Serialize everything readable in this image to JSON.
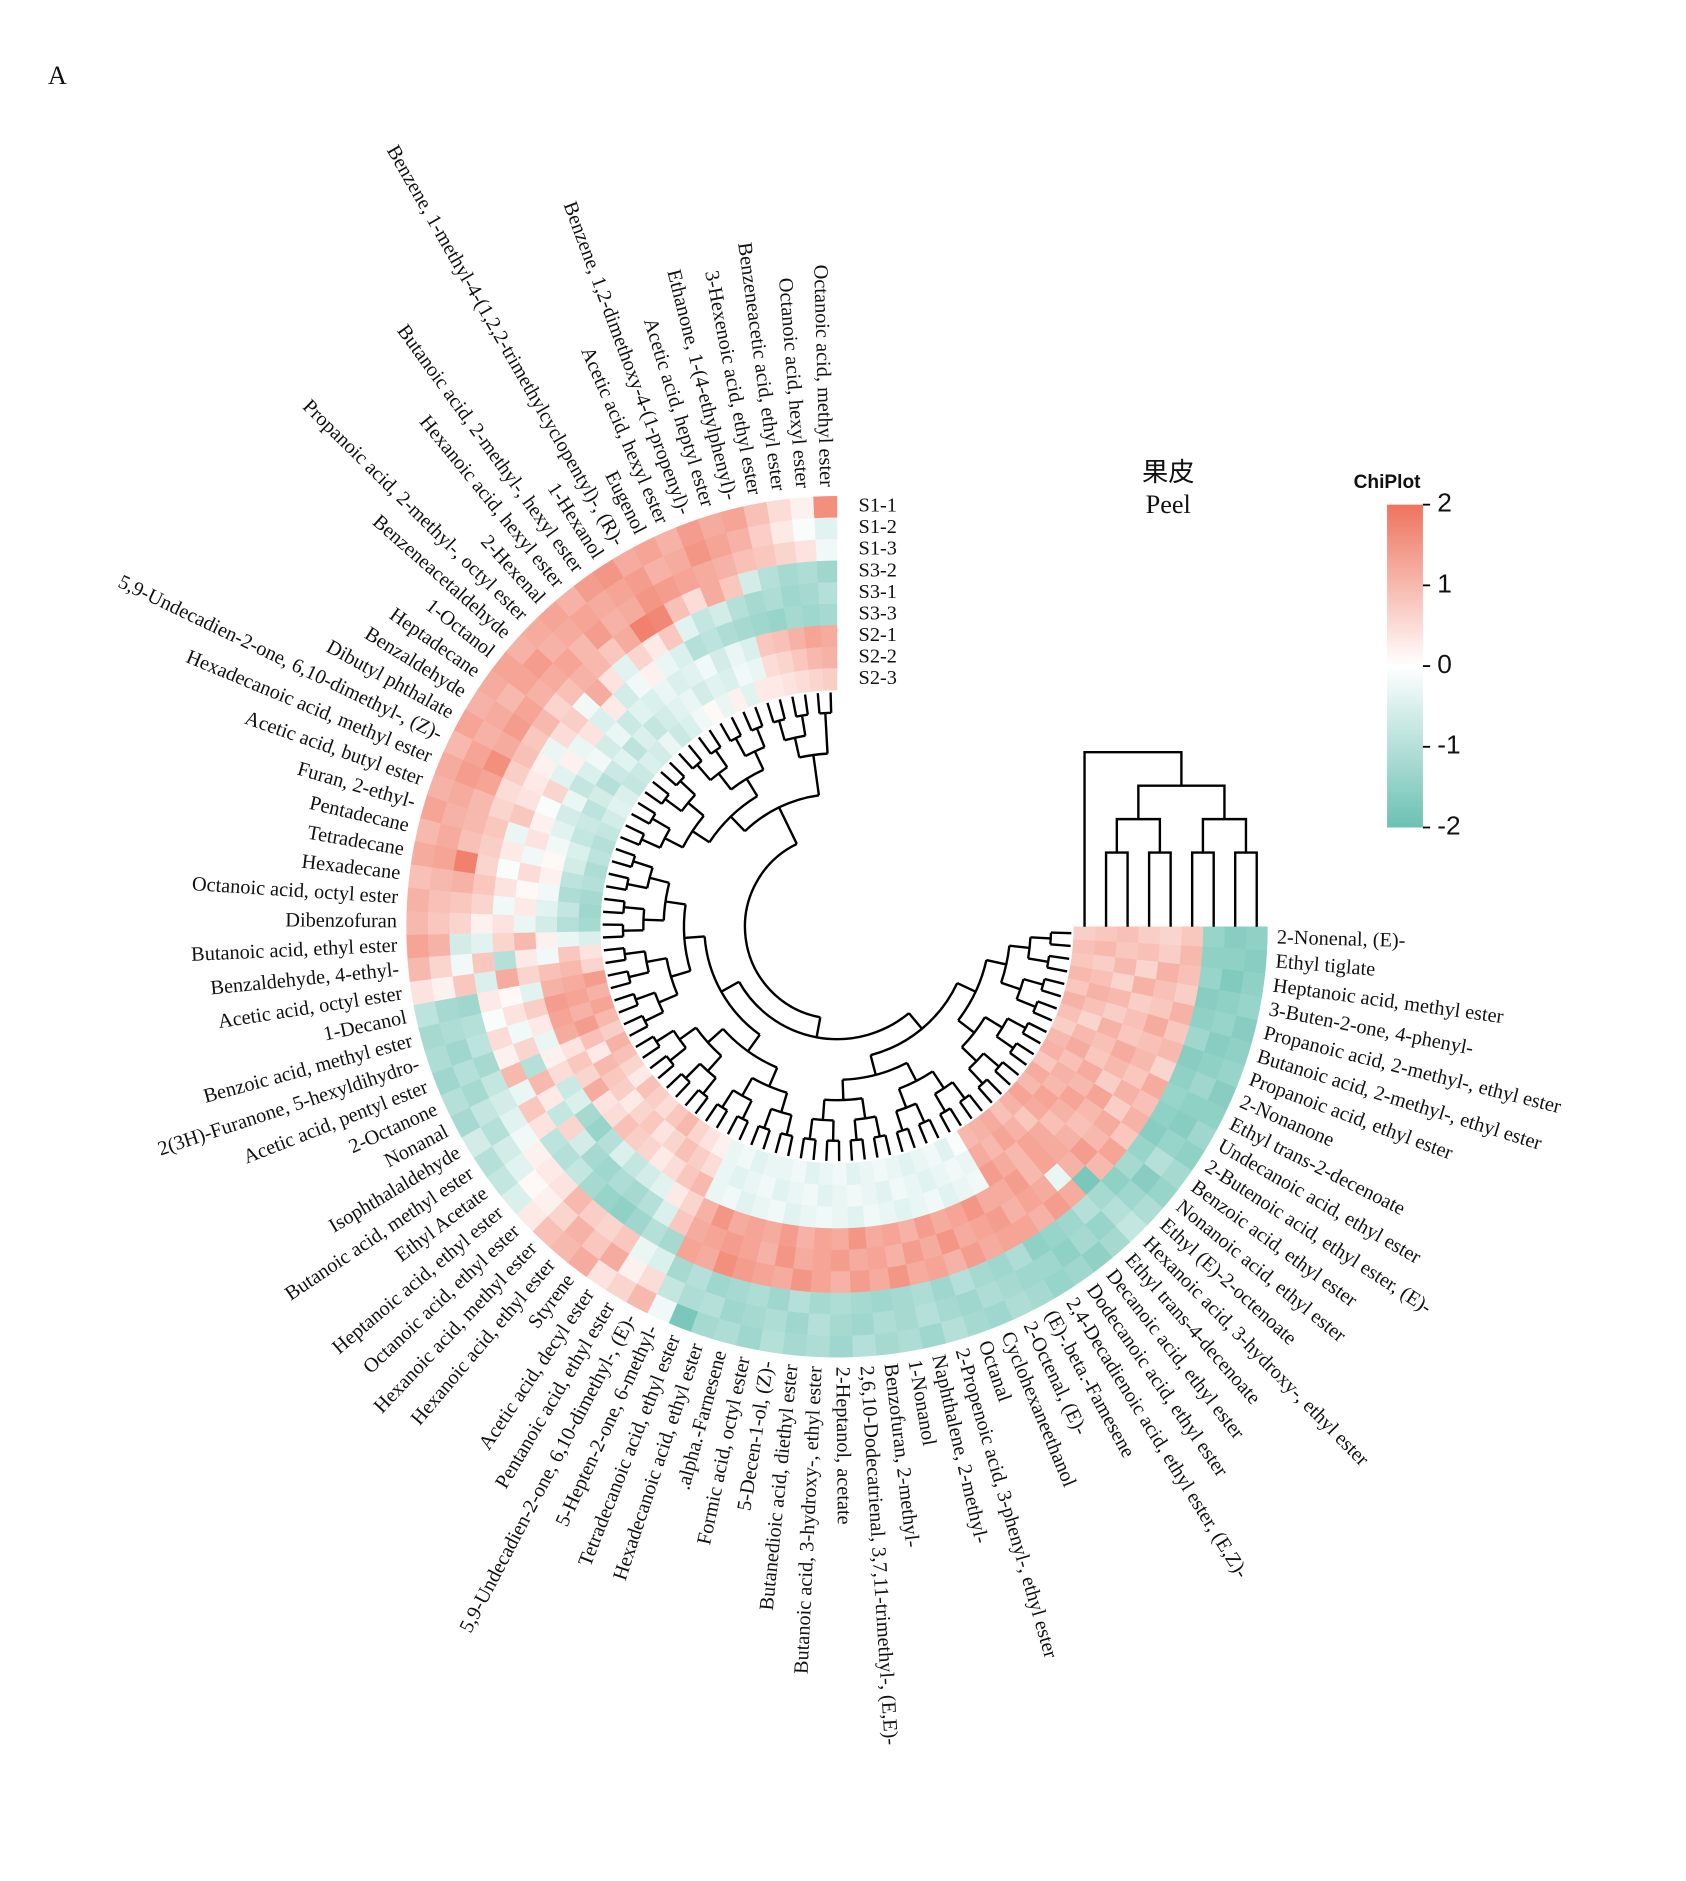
{
  "chart_data": {
    "type": "heatmap",
    "panel_label": "A",
    "title": "果皮",
    "subtitle": "Peel",
    "samples": [
      "S1-1",
      "S1-2",
      "S1-3",
      "S3-2",
      "S3-1",
      "S3-3",
      "S2-1",
      "S2-2",
      "S2-3"
    ],
    "compounds": [
      "2-Nonenal, (E)-",
      "Ethyl tiglate",
      "Heptanoic acid, methyl ester",
      "3-Buten-2-one, 4-phenyl-",
      "Propanoic acid, 2-methyl-, ethyl ester",
      "Butanoic acid, 2-methyl-, ethyl ester",
      "Propanoic acid, ethyl ester",
      "2-Nonanone",
      "Ethyl trans-2-decenoate",
      "Undecanoic acid, ethyl ester",
      "2-Butenoic acid, ethyl ester, (E)-",
      "Benzoic acid, ethyl ester",
      "Nonanoic acid, ethyl ester",
      "Ethyl (E)-2-octenoate",
      "Hexanoic acid, 3-hydroxy-, ethyl ester",
      "Ethyl trans-4-decenoate",
      "Decanoic acid, ethyl ester",
      "Dodecanoic acid, ethyl ester",
      "2,4-Decadienoic acid, ethyl ester, (E,Z)-",
      "(E)-.beta.-Famesene",
      "2-Octenal, (E)-",
      "Cyclohexaneethanol",
      "Octanal",
      "2-Propenoic acid, 3-phenyl-, ethyl ester",
      "Naphthalene, 2-methyl-",
      "1-Nonanol",
      "Benzofuran, 2-methyl-",
      "2,6,10-Dodecatrienal, 3,7,11-trimethyl-, (E,E)-",
      "2-Heptanol, acetate",
      "Butanoic acid, 3-hydroxy-, ethyl ester",
      "Butanedioic acid, diethyl ester",
      "5-Decen-1-ol, (Z)-",
      "Formic acid, octyl ester",
      ".alpha.-Farnesene",
      "Hexadecanoic acid, ethyl ester",
      "Tetradecanoic acid, ethyl ester",
      "5-Hepten-2-one, 6-methyl-",
      "5,9-Undecadien-2-one, 6,10-dimethyl-, (E)-",
      "Pentanoic acid, ethyl ester",
      "Acetic acid, decyl ester",
      "Styrene",
      "Hexanoic acid, ethyl ester",
      "Hexanoic acid, methyl ester",
      "Octanoic acid, ethyl ester",
      "Heptanoic acid, ethyl ester",
      "Ethyl Acetate",
      "Butanoic acid, methyl ester",
      "Isophthalaldehyde",
      "Nonanal",
      "2-Octanone",
      "Acetic acid, pentyl ester",
      "2(3H)-Furanone, 5-hexyldihydro-",
      "Benzoic acid, methyl ester",
      "1-Decanol",
      "Acetic acid, octyl ester",
      "Benzaldehyde, 4-ethyl-",
      "Butanoic acid, ethyl ester",
      "Dibenzofuran",
      "Octanoic acid, octyl ester",
      "Hexadecane",
      "Tetradecane",
      "Pentadecane",
      "Furan, 2-ethyl-",
      "Acetic acid, butyl ester",
      "Hexadecanoic acid, methyl ester",
      "5,9-Undecadien-2-one, 6,10-dimethyl-, (Z)-",
      "Dibutyl phthalate",
      "Benzaldehyde",
      "Heptadecane",
      "1-Octanol",
      "Benzeneacetaldehyde",
      "Propanoic acid, 2-methyl-, octyl ester",
      "2-Hexenal",
      "Hexanoic acid, hexyl ester",
      "Butanoic acid, 2-methyl-, hexyl ester",
      "1-Hexanol",
      "Benzene, 1-methyl-4-(1,2,2-trimethylcyclopentyl)-, (R)-",
      "Eugenol",
      "Acetic acid, hexyl ester",
      "Benzene, 1,2-dimethoxy-4-(1-propenyl)-",
      "Acetic acid, heptyl ester",
      "Ethanone, 1-(4-ethylphenyl)-",
      "3-Hexenoic acid, ethyl ester",
      "Benzeneacetic acid, ethyl ester",
      "Octanoic acid, hexyl ester",
      "Octanoic acid, methyl ester"
    ],
    "values": [
      [
        -1.5,
        -1.6,
        -1.4,
        0.8,
        0.6,
        0.7,
        0.9,
        0.8,
        0.7
      ],
      [
        -1.6,
        -1.5,
        -1.5,
        1.0,
        0.7,
        0.9,
        0.8,
        1.0,
        0.9
      ],
      [
        -1.5,
        -1.7,
        -1.4,
        0.9,
        1.1,
        0.6,
        1.0,
        0.7,
        0.8
      ],
      [
        -1.4,
        -1.5,
        -1.6,
        0.7,
        0.9,
        1.1,
        0.6,
        0.9,
        1.0
      ],
      [
        -1.6,
        -1.4,
        -1.5,
        1.1,
        0.8,
        0.7,
        1.0,
        1.1,
        0.8
      ],
      [
        -1.5,
        -1.6,
        -1.3,
        0.8,
        1.2,
        0.9,
        0.7,
        0.9,
        1.1
      ],
      [
        -1.4,
        -1.5,
        -1.6,
        1.0,
        0.9,
        0.8,
        1.1,
        0.6,
        0.9
      ],
      [
        -1.6,
        -1.3,
        -1.5,
        0.6,
        1.0,
        1.2,
        0.9,
        1.0,
        0.7
      ],
      [
        -1.5,
        -1.5,
        -1.4,
        1.2,
        0.8,
        1.0,
        0.8,
        1.2,
        1.0
      ],
      [
        -1.3,
        -1.6,
        -1.5,
        0.9,
        1.1,
        0.7,
        1.2,
        0.9,
        1.1
      ],
      [
        -1.5,
        -1.4,
        -1.6,
        1.1,
        0.7,
        1.3,
        1.0,
        1.1,
        0.8
      ],
      [
        -1.2,
        -1.0,
        -1.4,
        0.8,
        1.2,
        1.0,
        1.3,
        1.0,
        1.2
      ],
      [
        -1.4,
        -1.6,
        -1.2,
        1.3,
        1.0,
        0.9,
        1.1,
        1.3,
        1.0
      ],
      [
        -1.1,
        -1.3,
        -1.5,
        1.0,
        1.4,
        1.1,
        0.9,
        1.2,
        1.3
      ],
      [
        -0.8,
        -1.0,
        -1.2,
        -1.8,
        1.1,
        1.2,
        1.2,
        0.8,
        1.1
      ],
      [
        -1.2,
        -1.4,
        -1.0,
        1.2,
        -0.3,
        1.3,
        1.3,
        1.1,
        0.9
      ],
      [
        -1.5,
        -1.2,
        -1.3,
        1.4,
        1.2,
        1.0,
        1.0,
        1.3,
        1.2
      ],
      [
        -1.3,
        -1.5,
        -1.4,
        1.1,
        1.3,
        1.4,
        1.2,
        1.0,
        1.1
      ],
      [
        -1.4,
        -1.3,
        -1.5,
        1.3,
        1.1,
        1.2,
        1.4,
        1.2,
        1.0
      ],
      [
        -1.2,
        -1.3,
        -1.1,
        1.3,
        1.4,
        1.2,
        -0.2,
        -0.3,
        -0.1
      ],
      [
        -1.1,
        -1.2,
        -1.3,
        1.2,
        1.3,
        1.5,
        -0.3,
        -0.2,
        -0.4
      ],
      [
        -1.3,
        -1.1,
        -1.2,
        1.4,
        1.2,
        1.3,
        -0.4,
        -0.3,
        -0.2
      ],
      [
        -1.2,
        -1.3,
        -1.0,
        1.1,
        1.5,
        1.2,
        -0.2,
        -0.4,
        -0.3
      ],
      [
        -1.0,
        -1.2,
        -1.3,
        1.3,
        1.2,
        1.4,
        -0.3,
        -0.3,
        -0.4
      ],
      [
        -1.3,
        -1.0,
        -1.1,
        1.2,
        1.4,
        1.1,
        -0.4,
        -0.2,
        -0.3
      ],
      [
        -1.1,
        -1.2,
        -1.2,
        1.5,
        1.1,
        1.3,
        -0.3,
        -0.4,
        -0.2
      ],
      [
        -1.2,
        -1.1,
        -1.3,
        1.2,
        1.3,
        1.2,
        -0.2,
        -0.3,
        -0.3
      ],
      [
        -1.0,
        -1.3,
        -1.2,
        1.4,
        1.2,
        1.5,
        -0.4,
        -0.2,
        -0.4
      ],
      [
        -1.3,
        -1.2,
        -1.1,
        1.1,
        1.4,
        1.2,
        -0.3,
        -0.3,
        -0.2
      ],
      [
        -1.1,
        -1.0,
        -1.2,
        1.3,
        1.3,
        1.3,
        -0.2,
        -0.4,
        -0.3
      ],
      [
        -1.2,
        -1.3,
        -1.0,
        1.5,
        1.2,
        1.1,
        -0.3,
        -0.2,
        -0.4
      ],
      [
        -1.0,
        -1.1,
        -1.3,
        1.2,
        1.5,
        1.4,
        -0.4,
        -0.3,
        -0.2
      ],
      [
        -1.3,
        -1.2,
        -1.1,
        1.3,
        1.1,
        1.2,
        -0.2,
        -0.4,
        -0.3
      ],
      [
        -1.1,
        -1.3,
        -1.2,
        1.4,
        1.3,
        1.3,
        -0.3,
        -0.2,
        -0.3
      ],
      [
        -1.2,
        -1.0,
        -1.3,
        1.6,
        1.4,
        1.2,
        -0.4,
        -0.3,
        -0.4
      ],
      [
        -1.8,
        -1.1,
        -1.0,
        1.2,
        1.3,
        1.5,
        -0.2,
        -0.4,
        -0.2
      ],
      [
        -0.2,
        -0.8,
        -1.2,
        1.3,
        1.2,
        1.1,
        -0.3,
        -0.3,
        -0.3
      ],
      [
        1.0,
        0.5,
        -0.5,
        -1.2,
        0.8,
        0.6,
        1.0,
        0.5,
        0.2
      ],
      [
        0.6,
        0.2,
        -0.3,
        -1.0,
        -0.5,
        0.3,
        0.8,
        0.7,
        0.4
      ],
      [
        0.4,
        1.2,
        0.8,
        -1.3,
        -1.0,
        -0.4,
        0.5,
        0.9,
        0.6
      ],
      [
        1.2,
        0.8,
        0.6,
        -1.5,
        -1.2,
        -0.6,
        0.3,
        0.6,
        1.0
      ],
      [
        1.0,
        1.1,
        0.7,
        -1.4,
        -1.1,
        -0.8,
        0.6,
        0.4,
        0.8
      ],
      [
        0.9,
        0.6,
        1.0,
        -1.2,
        -1.3,
        -0.5,
        0.7,
        0.8,
        0.5
      ],
      [
        0.3,
        0.2,
        0.4,
        -0.8,
        -1.2,
        -1.0,
        0.9,
        0.6,
        0.7
      ],
      [
        -0.5,
        0.1,
        0.3,
        -1.0,
        -0.6,
        -1.4,
        0.5,
        0.3,
        0.9
      ],
      [
        -0.8,
        -0.4,
        0.2,
        -0.9,
        0.6,
        -1.2,
        0.4,
        0.7,
        0.3
      ],
      [
        -1.0,
        -0.6,
        -0.2,
        0.4,
        -0.8,
        -0.5,
        1.2,
        0.8,
        0.6
      ],
      [
        -0.6,
        -1.0,
        -0.4,
        0.8,
        0.3,
        -0.7,
        0.6,
        1.0,
        0.9
      ],
      [
        -1.2,
        -0.8,
        -0.6,
        -0.3,
        1.0,
        0.5,
        0.8,
        0.3,
        1.1
      ],
      [
        -1.0,
        -1.2,
        -0.8,
        1.0,
        -1.0,
        0.2,
        0.4,
        0.9,
        0.7
      ],
      [
        -1.3,
        -1.0,
        -1.2,
        0.2,
        0.6,
        -0.3,
        1.2,
        1.4,
        1.0
      ],
      [
        -1.1,
        -1.3,
        -0.9,
        0.5,
        -0.2,
        0.3,
        1.3,
        1.1,
        1.3
      ],
      [
        -1.2,
        -1.1,
        -1.0,
        -0.1,
        0.4,
        0.7,
        1.4,
        1.3,
        1.1
      ],
      [
        -0.9,
        -1.2,
        -1.3,
        0.3,
        0.1,
        -0.4,
        1.1,
        1.2,
        1.4
      ],
      [
        0.4,
        0.2,
        0.8,
        -0.5,
        1.2,
        0.6,
        0.9,
        1.0,
        0.6
      ],
      [
        1.0,
        0.6,
        -0.2,
        0.8,
        -1.0,
        0.3,
        -0.2,
        0.8,
        0.4
      ],
      [
        1.3,
        1.1,
        -0.6,
        -0.4,
        0.6,
        1.0,
        0.2,
        -0.3,
        -0.5
      ],
      [
        1.0,
        0.8,
        0.6,
        0.2,
        0.4,
        -0.3,
        -0.6,
        -1.0,
        -1.2
      ],
      [
        1.1,
        0.9,
        0.8,
        0.6,
        -0.2,
        0.3,
        -0.4,
        -0.8,
        -1.3
      ],
      [
        0.9,
        1.0,
        1.1,
        0.8,
        0.4,
        0.1,
        -0.2,
        -1.1,
        -1.2
      ],
      [
        1.2,
        1.3,
        1.8,
        0.6,
        -0.1,
        0.5,
        0.2,
        -0.9,
        -1.0
      ],
      [
        1.0,
        1.2,
        0.9,
        0.7,
        0.3,
        -0.2,
        0.1,
        -0.6,
        -1.1
      ],
      [
        1.3,
        1.1,
        1.0,
        0.8,
        -0.3,
        0.4,
        -0.2,
        -0.5,
        -0.9
      ],
      [
        1.1,
        1.2,
        1.0,
        0.6,
        0.8,
        0.2,
        -0.4,
        -0.8,
        -1.0
      ],
      [
        1.2,
        1.4,
        1.3,
        0.5,
        0.4,
        -0.1,
        -0.6,
        -0.7,
        -0.8
      ],
      [
        1.0,
        1.3,
        1.6,
        0.7,
        0.3,
        0.6,
        -0.3,
        -0.9,
        -0.6
      ],
      [
        1.3,
        1.1,
        1.2,
        0.9,
        0.2,
        -0.4,
        -0.8,
        -0.6,
        -0.4
      ],
      [
        1.1,
        1.2,
        1.4,
        0.8,
        -0.3,
        0.2,
        -0.5,
        -1.0,
        -0.5
      ],
      [
        1.2,
        1.0,
        1.3,
        1.0,
        0.5,
        -0.3,
        -0.2,
        -0.7,
        -0.8
      ],
      [
        1.3,
        1.3,
        1.1,
        0.6,
        0.7,
        0.4,
        -0.6,
        -0.4,
        -0.7
      ],
      [
        1.1,
        1.4,
        1.2,
        0.9,
        -0.2,
        -0.5,
        -0.3,
        -0.9,
        -0.5
      ],
      [
        1.2,
        1.1,
        1.3,
        1.1,
        1.2,
        0.3,
        -0.7,
        -0.5,
        -0.6
      ],
      [
        1.3,
        1.2,
        1.0,
        1.0,
        0.4,
        -0.6,
        -0.4,
        -0.8,
        -0.3
      ],
      [
        1.1,
        1.3,
        1.4,
        0.8,
        -0.4,
        -0.2,
        -0.5,
        -0.6,
        -0.7
      ],
      [
        1.4,
        1.2,
        1.1,
        1.2,
        0.6,
        0.2,
        -0.3,
        -0.4,
        -0.5
      ],
      [
        1.5,
        1.3,
        1.2,
        1.8,
        0.3,
        -0.3,
        -0.5,
        -0.3,
        -0.2
      ],
      [
        1.2,
        1.4,
        1.5,
        1.7,
        0.8,
        -0.5,
        -0.4,
        -0.6,
        0.1
      ],
      [
        1.3,
        1.1,
        1.4,
        0.9,
        -0.4,
        -1.0,
        -0.2,
        -0.4,
        -0.3
      ],
      [
        1.1,
        1.2,
        1.3,
        0.5,
        -0.8,
        -0.9,
        -0.6,
        -0.5,
        0.2
      ],
      [
        1.4,
        1.5,
        1.2,
        1.2,
        -0.6,
        -1.1,
        -0.3,
        -0.2,
        -0.4
      ],
      [
        1.2,
        1.3,
        1.1,
        0.8,
        -1.0,
        -1.2,
        -0.5,
        -0.3,
        0.3
      ],
      [
        1.3,
        1.1,
        0.9,
        -0.6,
        -1.2,
        -1.3,
        0.8,
        0.5,
        0.3
      ],
      [
        0.9,
        0.7,
        0.8,
        -1.0,
        -1.1,
        -1.4,
        0.9,
        0.6,
        0.4
      ],
      [
        0.5,
        0.3,
        0.6,
        -1.2,
        -1.3,
        -1.2,
        1.1,
        0.8,
        0.5
      ],
      [
        0.2,
        -0.1,
        0.4,
        -1.1,
        -1.2,
        -1.3,
        1.3,
        1.0,
        0.6
      ],
      [
        1.6,
        -0.4,
        -0.2,
        -1.3,
        -1.0,
        -1.2,
        1.2,
        1.1,
        0.7
      ]
    ],
    "colorbar": {
      "title": "ChiPlot",
      "lim": [
        -2,
        2
      ],
      "ticks": [
        2,
        1,
        0,
        -1,
        -2
      ],
      "colors": [
        "#6bc1b3",
        "#ffffff",
        "#ef735d"
      ]
    }
  }
}
